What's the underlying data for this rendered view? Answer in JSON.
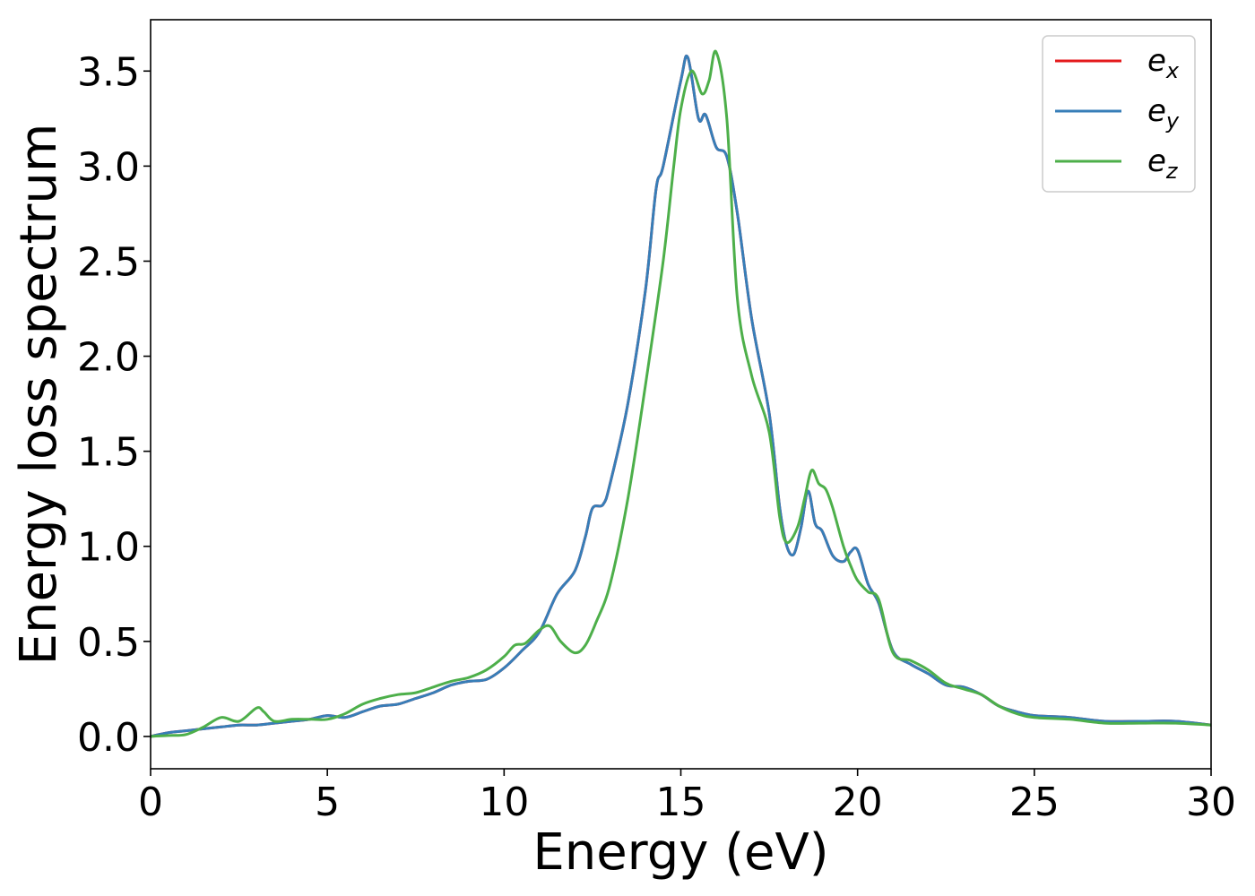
{
  "chart_data": {
    "type": "line",
    "title": "",
    "xlabel": "Energy (eV)",
    "ylabel": "Energy loss spectrum",
    "xlim": [
      0,
      30
    ],
    "ylim": [
      -0.17,
      3.77
    ],
    "xticks": [
      0,
      5,
      10,
      15,
      20,
      25,
      30
    ],
    "xtick_labels": [
      "0",
      "5",
      "10",
      "15",
      "20",
      "25",
      "30"
    ],
    "yticks": [
      0.0,
      0.5,
      1.0,
      1.5,
      2.0,
      2.5,
      3.0,
      3.5
    ],
    "ytick_labels": [
      "0.0",
      "0.5",
      "1.0",
      "1.5",
      "2.0",
      "2.5",
      "3.0",
      "3.5"
    ],
    "grid": false,
    "legend_position": "top-right",
    "series": [
      {
        "name": "e",
        "sub": "x",
        "color": "#e41a1c",
        "x": [
          0,
          0.5,
          1,
          1.5,
          2,
          2.5,
          3,
          3.5,
          4,
          4.5,
          5,
          5.5,
          6,
          6.5,
          7,
          7.5,
          8,
          8.5,
          9,
          9.5,
          10,
          10.5,
          11,
          11.5,
          12,
          12.3,
          12.5,
          12.8,
          13,
          13.5,
          14,
          14.3,
          14.5,
          15,
          15.2,
          15.5,
          15.7,
          16,
          16.3,
          16.6,
          17,
          17.5,
          17.8,
          18,
          18.2,
          18.4,
          18.6,
          18.8,
          19,
          19.3,
          19.6,
          19.8,
          20,
          20.3,
          20.6,
          21,
          21.5,
          22,
          22.5,
          23,
          23.5,
          24,
          24.5,
          25,
          26,
          27,
          28,
          29,
          30
        ],
        "y": [
          0,
          0.02,
          0.03,
          0.04,
          0.05,
          0.06,
          0.06,
          0.07,
          0.08,
          0.09,
          0.11,
          0.1,
          0.13,
          0.16,
          0.17,
          0.2,
          0.23,
          0.27,
          0.29,
          0.3,
          0.36,
          0.45,
          0.55,
          0.75,
          0.87,
          1.05,
          1.2,
          1.22,
          1.33,
          1.75,
          2.35,
          2.88,
          3.0,
          3.45,
          3.57,
          3.25,
          3.27,
          3.1,
          3.05,
          2.75,
          2.2,
          1.7,
          1.2,
          1.0,
          0.96,
          1.1,
          1.29,
          1.12,
          1.08,
          0.95,
          0.92,
          0.97,
          0.98,
          0.8,
          0.7,
          0.45,
          0.38,
          0.33,
          0.27,
          0.26,
          0.22,
          0.16,
          0.13,
          0.11,
          0.1,
          0.08,
          0.08,
          0.08,
          0.06
        ]
      },
      {
        "name": "e",
        "sub": "y",
        "color": "#377eb8",
        "x": [
          0,
          0.5,
          1,
          1.5,
          2,
          2.5,
          3,
          3.5,
          4,
          4.5,
          5,
          5.5,
          6,
          6.5,
          7,
          7.5,
          8,
          8.5,
          9,
          9.5,
          10,
          10.5,
          11,
          11.5,
          12,
          12.3,
          12.5,
          12.8,
          13,
          13.5,
          14,
          14.3,
          14.5,
          15,
          15.2,
          15.5,
          15.7,
          16,
          16.3,
          16.6,
          17,
          17.5,
          17.8,
          18,
          18.2,
          18.4,
          18.6,
          18.8,
          19,
          19.3,
          19.6,
          19.8,
          20,
          20.3,
          20.6,
          21,
          21.5,
          22,
          22.5,
          23,
          23.5,
          24,
          24.5,
          25,
          26,
          27,
          28,
          29,
          30
        ],
        "y": [
          0,
          0.02,
          0.03,
          0.04,
          0.05,
          0.06,
          0.06,
          0.07,
          0.08,
          0.09,
          0.11,
          0.1,
          0.13,
          0.16,
          0.17,
          0.2,
          0.23,
          0.27,
          0.29,
          0.3,
          0.36,
          0.45,
          0.55,
          0.75,
          0.87,
          1.05,
          1.2,
          1.22,
          1.33,
          1.75,
          2.35,
          2.88,
          3.0,
          3.45,
          3.57,
          3.25,
          3.27,
          3.1,
          3.05,
          2.75,
          2.2,
          1.7,
          1.2,
          1.0,
          0.96,
          1.1,
          1.29,
          1.12,
          1.08,
          0.95,
          0.92,
          0.97,
          0.98,
          0.8,
          0.7,
          0.45,
          0.38,
          0.33,
          0.27,
          0.26,
          0.22,
          0.16,
          0.13,
          0.11,
          0.1,
          0.08,
          0.08,
          0.08,
          0.06
        ]
      },
      {
        "name": "e",
        "sub": "z",
        "color": "#4daf4a",
        "x": [
          0,
          0.5,
          1,
          1.5,
          2,
          2.5,
          3,
          3.2,
          3.5,
          4,
          4.5,
          5,
          5.5,
          6,
          6.5,
          7,
          7.5,
          8,
          8.5,
          9,
          9.5,
          10,
          10.3,
          10.6,
          11,
          11.3,
          11.6,
          12,
          12.3,
          12.6,
          13,
          13.5,
          14,
          14.5,
          14.8,
          15,
          15.3,
          15.6,
          15.8,
          16,
          16.3,
          16.6,
          17,
          17.5,
          17.8,
          18,
          18.3,
          18.5,
          18.7,
          18.9,
          19.1,
          19.3,
          19.6,
          19.8,
          20,
          20.3,
          20.6,
          21,
          21.5,
          22,
          22.5,
          23,
          23.5,
          24,
          24.5,
          25,
          26,
          27,
          28,
          29,
          30
        ],
        "y": [
          0,
          0.005,
          0.01,
          0.05,
          0.1,
          0.08,
          0.15,
          0.13,
          0.08,
          0.09,
          0.09,
          0.09,
          0.12,
          0.17,
          0.2,
          0.22,
          0.23,
          0.26,
          0.29,
          0.31,
          0.35,
          0.42,
          0.48,
          0.49,
          0.56,
          0.58,
          0.5,
          0.44,
          0.48,
          0.6,
          0.8,
          1.25,
          1.85,
          2.5,
          3.0,
          3.3,
          3.5,
          3.38,
          3.45,
          3.6,
          3.25,
          2.3,
          1.9,
          1.6,
          1.15,
          1.02,
          1.1,
          1.25,
          1.4,
          1.33,
          1.3,
          1.2,
          1.0,
          0.9,
          0.82,
          0.76,
          0.72,
          0.44,
          0.4,
          0.35,
          0.28,
          0.25,
          0.22,
          0.16,
          0.12,
          0.1,
          0.09,
          0.07,
          0.07,
          0.07,
          0.06
        ]
      }
    ]
  }
}
